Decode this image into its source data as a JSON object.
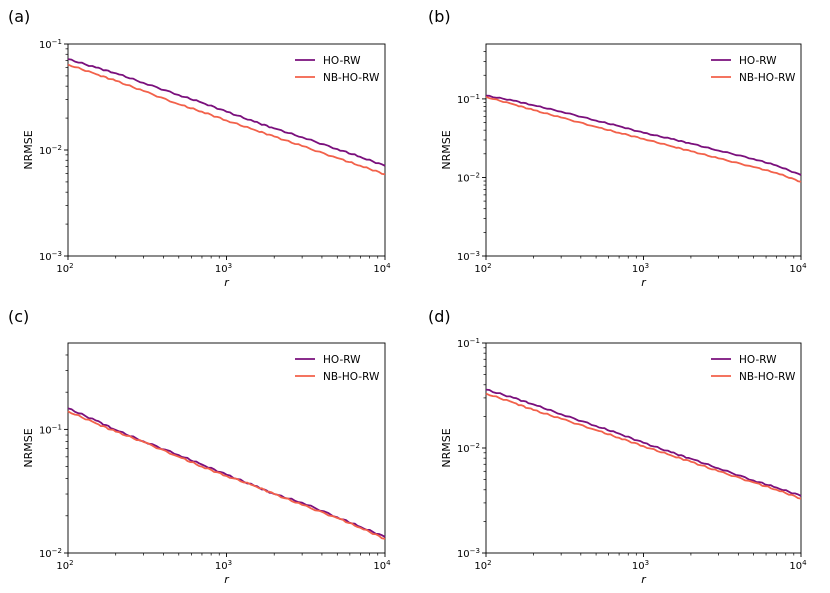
{
  "figure": {
    "colors": {
      "HO-RW": "#7a0f7c",
      "NB-HO-RW": "#f2614a"
    }
  },
  "chart_data": [
    {
      "type": "line",
      "panel_label": "(a)",
      "xlabel": "r",
      "ylabel": "NRMSE",
      "xscale": "log",
      "yscale": "log",
      "xlim": [
        100,
        10000
      ],
      "ylim": [
        0.001,
        0.1
      ],
      "x_ticks": [
        {
          "base": "10",
          "exp": "2"
        },
        {
          "base": "10",
          "exp": "3"
        },
        {
          "base": "10",
          "exp": "4"
        }
      ],
      "y_ticks": [
        {
          "base": "10",
          "exp": "−3"
        },
        {
          "base": "10",
          "exp": "−2"
        },
        {
          "base": "10",
          "exp": "−1"
        }
      ],
      "legend": [
        "HO-RW",
        "NB-HO-RW"
      ],
      "legend_position": "top-right",
      "x": [
        100,
        150,
        200,
        300,
        500,
        700,
        1000,
        1500,
        2000,
        3000,
        5000,
        7000,
        10000
      ],
      "series": [
        {
          "name": "HO-RW",
          "values": [
            0.072,
            0.06,
            0.053,
            0.043,
            0.033,
            0.028,
            0.023,
            0.0185,
            0.016,
            0.0132,
            0.0102,
            0.0086,
            0.0071
          ]
        },
        {
          "name": "NB-HO-RW",
          "values": [
            0.064,
            0.052,
            0.045,
            0.036,
            0.027,
            0.023,
            0.019,
            0.0155,
            0.0134,
            0.0109,
            0.0084,
            0.0071,
            0.0059
          ]
        }
      ]
    },
    {
      "type": "line",
      "panel_label": "(b)",
      "xlabel": "r",
      "ylabel": "NRMSE",
      "xscale": "log",
      "yscale": "log",
      "xlim": [
        100,
        10000
      ],
      "ylim": [
        0.001,
        0.5
      ],
      "x_ticks": [
        {
          "base": "10",
          "exp": "2"
        },
        {
          "base": "10",
          "exp": "3"
        },
        {
          "base": "10",
          "exp": "4"
        }
      ],
      "y_ticks": [
        {
          "base": "10",
          "exp": "−3"
        },
        {
          "base": "10",
          "exp": "−2"
        },
        {
          "base": "10",
          "exp": "−1"
        }
      ],
      "legend": [
        "HO-RW",
        "NB-HO-RW"
      ],
      "legend_position": "top-right",
      "x": [
        100,
        150,
        200,
        300,
        500,
        700,
        1000,
        1500,
        2000,
        3000,
        5000,
        7000,
        10000
      ],
      "series": [
        {
          "name": "HO-RW",
          "values": [
            0.11,
            0.095,
            0.083,
            0.069,
            0.053,
            0.045,
            0.037,
            0.031,
            0.027,
            0.022,
            0.0172,
            0.0142,
            0.0107
          ]
        },
        {
          "name": "NB-HO-RW",
          "values": [
            0.106,
            0.085,
            0.072,
            0.058,
            0.044,
            0.037,
            0.031,
            0.025,
            0.0216,
            0.0175,
            0.0136,
            0.0114,
            0.0088
          ]
        }
      ]
    },
    {
      "type": "line",
      "panel_label": "(c)",
      "xlabel": "r",
      "ylabel": "NRMSE",
      "xscale": "log",
      "yscale": "log",
      "xlim": [
        100,
        10000
      ],
      "ylim": [
        0.01,
        0.5
      ],
      "x_ticks": [
        {
          "base": "10",
          "exp": "2"
        },
        {
          "base": "10",
          "exp": "3"
        },
        {
          "base": "10",
          "exp": "4"
        }
      ],
      "y_ticks": [
        {
          "base": "10",
          "exp": "−2"
        },
        {
          "base": "10",
          "exp": "−1"
        }
      ],
      "legend": [
        "HO-RW",
        "NB-HO-RW"
      ],
      "legend_position": "top-right",
      "x": [
        100,
        150,
        200,
        300,
        500,
        700,
        1000,
        1500,
        2000,
        3000,
        5000,
        7000,
        10000
      ],
      "series": [
        {
          "name": "HO-RW",
          "values": [
            0.148,
            0.118,
            0.099,
            0.08,
            0.062,
            0.052,
            0.043,
            0.035,
            0.03,
            0.0255,
            0.0195,
            0.0163,
            0.0135
          ]
        },
        {
          "name": "NB-HO-RW",
          "values": [
            0.14,
            0.112,
            0.096,
            0.079,
            0.06,
            0.05,
            0.042,
            0.035,
            0.03,
            0.0245,
            0.0192,
            0.016,
            0.013
          ]
        }
      ]
    },
    {
      "type": "line",
      "panel_label": "(d)",
      "xlabel": "r",
      "ylabel": "NRMSE",
      "xscale": "log",
      "yscale": "log",
      "xlim": [
        100,
        10000
      ],
      "ylim": [
        0.001,
        0.1
      ],
      "x_ticks": [
        {
          "base": "10",
          "exp": "2"
        },
        {
          "base": "10",
          "exp": "3"
        },
        {
          "base": "10",
          "exp": "4"
        }
      ],
      "y_ticks": [
        {
          "base": "10",
          "exp": "−3"
        },
        {
          "base": "10",
          "exp": "−2"
        },
        {
          "base": "10",
          "exp": "−1"
        }
      ],
      "legend": [
        "HO-RW",
        "NB-HO-RW"
      ],
      "legend_position": "top-right",
      "x": [
        100,
        150,
        200,
        300,
        500,
        700,
        1000,
        1500,
        2000,
        3000,
        5000,
        7000,
        10000
      ],
      "series": [
        {
          "name": "HO-RW",
          "values": [
            0.036,
            0.03,
            0.026,
            0.021,
            0.0162,
            0.0137,
            0.0112,
            0.0091,
            0.0079,
            0.0064,
            0.0049,
            0.0042,
            0.0035
          ]
        },
        {
          "name": "NB-HO-RW",
          "values": [
            0.033,
            0.027,
            0.023,
            0.019,
            0.0148,
            0.0125,
            0.0104,
            0.0085,
            0.0074,
            0.006,
            0.0047,
            0.004,
            0.0033
          ]
        }
      ]
    }
  ]
}
